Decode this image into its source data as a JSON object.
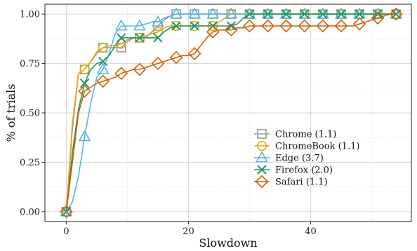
{
  "chart_data": {
    "type": "line",
    "xlabel": "Slowdown",
    "ylabel": "% of trials",
    "xlim": [
      -3.5,
      56.5
    ],
    "ylim": [
      -0.05,
      1.05
    ],
    "xticks": [
      0,
      20,
      40
    ],
    "yticks": [
      0.0,
      0.25,
      0.5,
      0.75,
      1.0
    ],
    "ytick_labels": [
      "0.00",
      "0.25",
      "0.50",
      "0.75",
      "1.00"
    ],
    "grid": true,
    "legend_position": "lower-right",
    "series": [
      {
        "name": "Chrome (1.1)",
        "color": "#9a9a9a",
        "marker": "square",
        "x": [
          0,
          1,
          2,
          3,
          4,
          5,
          6,
          7,
          8,
          9,
          10,
          11,
          12,
          13,
          14,
          15,
          16,
          17,
          18,
          19,
          20,
          21,
          22,
          23,
          24,
          25,
          26,
          27,
          28,
          29,
          30,
          31,
          32,
          33,
          34,
          35,
          36,
          37,
          38,
          39,
          40,
          41,
          42,
          43,
          44,
          45,
          46,
          47,
          48,
          49,
          50,
          51,
          52,
          53,
          54
        ],
        "y": [
          0.0,
          0.42,
          0.7,
          0.72,
          0.76,
          0.8,
          0.83,
          0.83,
          0.83,
          0.83,
          0.86,
          0.88,
          0.88,
          0.88,
          0.91,
          0.94,
          0.97,
          0.99,
          1.0,
          1.0,
          1.0,
          1.0,
          1.0,
          1.0,
          1.0,
          1.0,
          1.0,
          1.0,
          1.0,
          1.0,
          1.0,
          1.0,
          1.0,
          1.0,
          1.0,
          1.0,
          1.0,
          1.0,
          1.0,
          1.0,
          1.0,
          1.0,
          1.0,
          1.0,
          1.0,
          1.0,
          1.0,
          1.0,
          1.0,
          1.0,
          1.0,
          1.0,
          1.0,
          1.0,
          1.0
        ],
        "markers": [
          0,
          3,
          6,
          9,
          12,
          15,
          18,
          21,
          24,
          27,
          30,
          33,
          36,
          39,
          42,
          45,
          48,
          51,
          54
        ]
      },
      {
        "name": "ChromeBook (1.1)",
        "color": "#e8a800",
        "marker": "circle",
        "x": [
          0,
          1,
          2,
          3,
          4,
          5,
          6,
          7,
          8,
          9,
          10,
          11,
          12,
          13,
          14,
          15,
          16,
          17,
          18,
          19,
          20,
          21,
          22,
          23,
          24,
          25,
          26,
          27,
          28,
          29,
          30,
          31,
          32,
          33,
          34,
          35,
          36,
          37,
          38,
          39,
          40,
          41,
          42,
          43,
          44,
          45,
          46,
          47,
          48,
          49,
          50,
          51,
          52,
          53,
          54
        ],
        "y": [
          0.0,
          0.45,
          0.7,
          0.72,
          0.76,
          0.81,
          0.83,
          0.84,
          0.84,
          0.85,
          0.87,
          0.88,
          0.88,
          0.89,
          0.9,
          0.91,
          0.93,
          0.94,
          0.94,
          0.94,
          0.94,
          0.94,
          0.94,
          0.94,
          0.94,
          0.96,
          0.98,
          1.0,
          1.0,
          1.0,
          1.0,
          1.0,
          1.0,
          1.0,
          1.0,
          1.0,
          1.0,
          1.0,
          1.0,
          1.0,
          1.0,
          1.0,
          1.0,
          1.0,
          1.0,
          1.0,
          1.0,
          1.0,
          1.0,
          1.0,
          1.0,
          1.0,
          1.0,
          1.0,
          1.0
        ],
        "markers": [
          0,
          3,
          6,
          9,
          12,
          15,
          18,
          21,
          24,
          27,
          30,
          33,
          36,
          39,
          42,
          45,
          48,
          51,
          54
        ]
      },
      {
        "name": "Edge (3.7)",
        "color": "#56b4e9",
        "marker": "triangle",
        "x": [
          0,
          1,
          2,
          3,
          4,
          5,
          6,
          7,
          8,
          9,
          10,
          11,
          12,
          13,
          14,
          15,
          16,
          17,
          18,
          19,
          20,
          21,
          22,
          23,
          24,
          25,
          26,
          27,
          28,
          29,
          30,
          31,
          32,
          33,
          34,
          35,
          36,
          37,
          38,
          39,
          40,
          41,
          42,
          43,
          44,
          45,
          46,
          47,
          48,
          49,
          50,
          51,
          52,
          53,
          54
        ],
        "y": [
          0.0,
          0.05,
          0.18,
          0.38,
          0.55,
          0.68,
          0.72,
          0.8,
          0.9,
          0.94,
          0.94,
          0.94,
          0.94,
          0.95,
          0.96,
          0.96,
          0.98,
          0.99,
          1.0,
          1.0,
          1.0,
          1.0,
          1.0,
          1.0,
          1.0,
          1.0,
          1.0,
          1.0,
          1.0,
          1.0,
          1.0,
          1.0,
          1.0,
          1.0,
          1.0,
          1.0,
          1.0,
          1.0,
          1.0,
          1.0,
          1.0,
          1.0,
          1.0,
          1.0,
          1.0,
          1.0,
          1.0,
          1.0,
          1.0,
          1.0,
          1.0,
          1.0,
          1.0,
          1.0,
          1.0
        ],
        "markers": [
          0,
          3,
          6,
          9,
          12,
          15,
          18,
          21,
          24,
          27,
          30,
          33,
          36,
          39,
          42,
          45,
          48,
          51,
          54
        ]
      },
      {
        "name": "Firefox (2.0)",
        "color": "#1a9a70",
        "marker": "x",
        "x": [
          0,
          1,
          2,
          3,
          4,
          5,
          6,
          7,
          8,
          9,
          10,
          11,
          12,
          13,
          14,
          15,
          16,
          17,
          18,
          19,
          20,
          21,
          22,
          23,
          24,
          25,
          26,
          27,
          28,
          29,
          30,
          31,
          32,
          33,
          34,
          35,
          36,
          37,
          38,
          39,
          40,
          41,
          42,
          43,
          44,
          45,
          46,
          47,
          48,
          49,
          50,
          51,
          52,
          53,
          54
        ],
        "y": [
          0.0,
          0.3,
          0.52,
          0.65,
          0.72,
          0.75,
          0.76,
          0.79,
          0.84,
          0.88,
          0.88,
          0.88,
          0.88,
          0.88,
          0.88,
          0.88,
          0.91,
          0.93,
          0.94,
          0.94,
          0.94,
          0.94,
          0.94,
          0.94,
          0.94,
          0.94,
          0.94,
          0.94,
          0.95,
          0.98,
          1.0,
          1.0,
          1.0,
          1.0,
          1.0,
          1.0,
          1.0,
          1.0,
          1.0,
          1.0,
          1.0,
          1.0,
          1.0,
          1.0,
          1.0,
          1.0,
          1.0,
          1.0,
          1.0,
          1.0,
          1.0,
          1.0,
          1.0,
          1.0,
          1.0
        ],
        "markers": [
          0,
          3,
          6,
          9,
          12,
          15,
          18,
          21,
          24,
          27,
          30,
          33,
          36,
          39,
          42,
          45,
          48,
          51,
          54
        ]
      },
      {
        "name": "Safari (1.1)",
        "color": "#d55e00",
        "marker": "diamond",
        "x": [
          0,
          1,
          2,
          3,
          4,
          5,
          6,
          7,
          8,
          9,
          10,
          11,
          12,
          13,
          14,
          15,
          16,
          17,
          18,
          19,
          20,
          21,
          22,
          23,
          24,
          25,
          26,
          27,
          28,
          29,
          30,
          31,
          32,
          33,
          34,
          35,
          36,
          37,
          38,
          39,
          40,
          41,
          42,
          43,
          44,
          45,
          46,
          47,
          48,
          49,
          50,
          51,
          52,
          53,
          54
        ],
        "y": [
          0.0,
          0.25,
          0.5,
          0.61,
          0.63,
          0.65,
          0.66,
          0.67,
          0.68,
          0.7,
          0.71,
          0.72,
          0.72,
          0.73,
          0.74,
          0.75,
          0.76,
          0.77,
          0.78,
          0.79,
          0.79,
          0.8,
          0.84,
          0.88,
          0.91,
          0.92,
          0.92,
          0.92,
          0.93,
          0.93,
          0.94,
          0.94,
          0.94,
          0.94,
          0.94,
          0.94,
          0.94,
          0.94,
          0.94,
          0.94,
          0.94,
          0.94,
          0.94,
          0.94,
          0.94,
          0.94,
          0.94,
          0.94,
          0.95,
          0.96,
          0.97,
          0.98,
          0.99,
          1.0,
          1.0
        ],
        "markers": [
          0,
          3,
          6,
          9,
          12,
          15,
          18,
          21,
          24,
          27,
          30,
          33,
          36,
          39,
          42,
          45,
          48,
          51,
          54
        ]
      }
    ]
  }
}
